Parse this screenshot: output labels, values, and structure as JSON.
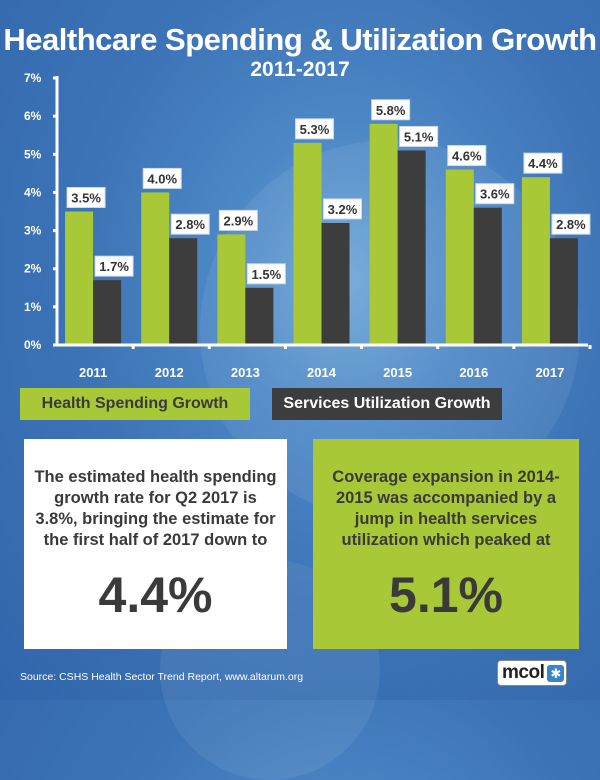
{
  "header": {
    "title": "Healthcare Spending & Utilization Growth",
    "subtitle": "2011-2017"
  },
  "colors": {
    "spending": "#a8c838",
    "utilization": "#3d3d3d",
    "background": "#3c73b6"
  },
  "chart_data": {
    "type": "bar",
    "title": "Healthcare Spending & Utilization Growth",
    "subtitle": "2011-2017",
    "xlabel": "",
    "ylabel": "",
    "categories": [
      "2011",
      "2012",
      "2013",
      "2014",
      "2015",
      "2016",
      "2017"
    ],
    "series": [
      {
        "name": "Health Spending Growth",
        "color": "#a8c838",
        "values": [
          3.5,
          4.0,
          2.9,
          5.3,
          5.8,
          4.6,
          4.4
        ]
      },
      {
        "name": "Services Utilization Growth",
        "color": "#3d3d3d",
        "values": [
          1.7,
          2.8,
          1.5,
          3.2,
          5.1,
          3.6,
          2.8
        ]
      }
    ],
    "value_labels": [
      [
        "3.5%",
        "4.0%",
        "2.9%",
        "5.3%",
        "5.8%",
        "4.6%",
        "4.4%"
      ],
      [
        "1.7%",
        "2.8%",
        "1.5%",
        "3.2%",
        "5.1%",
        "3.6%",
        "2.8%"
      ]
    ],
    "ylim": [
      0,
      7
    ],
    "yticks": [
      0,
      1,
      2,
      3,
      4,
      5,
      6,
      7
    ],
    "ytick_labels": [
      "0%",
      "1%",
      "2%",
      "3%",
      "4%",
      "5%",
      "6%",
      "7%"
    ],
    "grid": false,
    "legend_position": "bottom"
  },
  "legend": {
    "spending_label": "Health Spending Growth",
    "utilization_label": "Services Utilization Growth"
  },
  "callouts": {
    "left": {
      "text": "The estimated health spending growth rate for Q2 2017 is 3.8%, bringing the estimate for the first half of 2017 down to",
      "value": "4.4%"
    },
    "right": {
      "text": "Coverage expansion in 2014-2015 was accompanied by a jump in health services utilization which peaked at",
      "value": "5.1%"
    }
  },
  "footer": {
    "source": "Source:  CSHS Health Sector Trend Report, www.altarum.org",
    "logo_text": "mcol",
    "logo_icon": "asterisk-icon"
  }
}
